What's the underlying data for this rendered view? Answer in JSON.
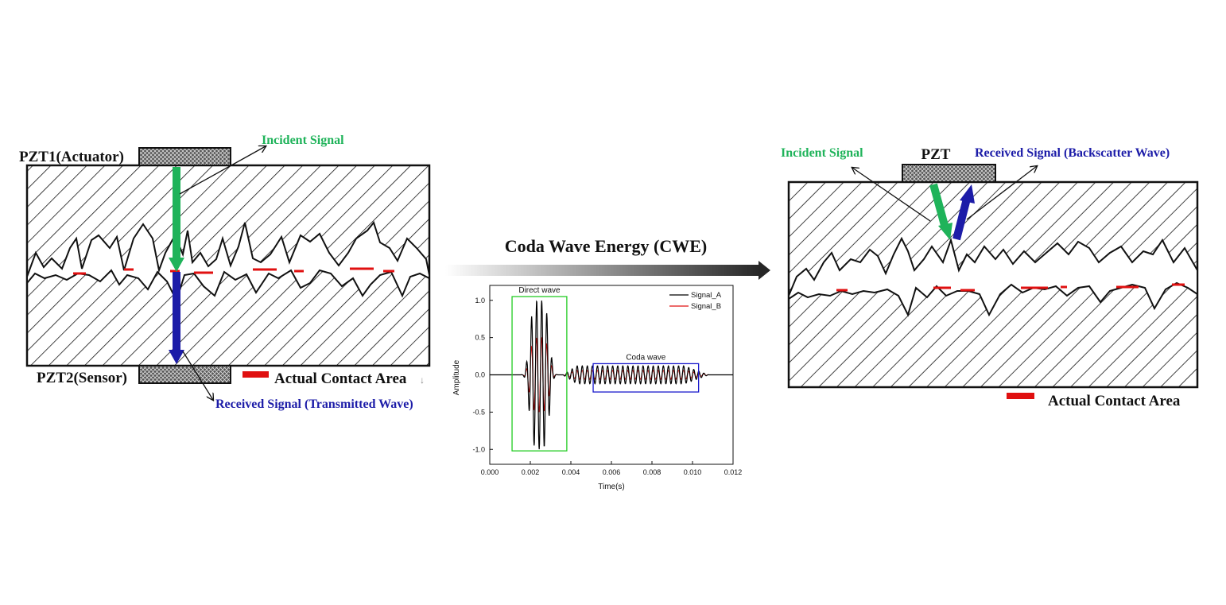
{
  "left_panel": {
    "actuator_label": "PZT1(Actuator)",
    "sensor_label": "PZT2(Sensor)",
    "incident_label": "Incident Signal",
    "received_label": "Received Signal (Transmitted Wave)",
    "legend_label": "Actual Contact Area",
    "legend_mark": "↓"
  },
  "middle": {
    "arrow_title": "Coda Wave Energy (CWE)"
  },
  "right_panel": {
    "pzt_label": "PZT",
    "incident_label": "Incident Signal",
    "received_label": "Received Signal (Backscatter Wave)",
    "legend_label": "Actual Contact Area"
  },
  "colors": {
    "incident_green": "#1fb35a",
    "received_blue": "#1c1ca8",
    "contact_red": "#e01010",
    "signal_a": "#000000",
    "signal_b": "#e01010",
    "direct_box": "#22cc22",
    "coda_box": "#1a1acc"
  },
  "chart_data": {
    "type": "line",
    "xlabel": "Time(s)",
    "ylabel": "Amplitude",
    "xlim": [
      0.0,
      0.012
    ],
    "ylim": [
      -1.2,
      1.2
    ],
    "x_ticks": [
      "0.000",
      "0.002",
      "0.004",
      "0.006",
      "0.008",
      "0.010",
      "0.012"
    ],
    "y_ticks": [
      "1.0",
      "0.5",
      "0.0",
      "-0.5",
      "-1.0"
    ],
    "legend_position": "top-right",
    "series": [
      {
        "name": "Signal_A",
        "color": "#000000",
        "frequency_hz": 4000,
        "direct_peak": 1.0,
        "coda_peak": 0.12
      },
      {
        "name": "Signal_B",
        "color": "#e01010",
        "frequency_hz": 4000,
        "direct_peak": 0.5,
        "coda_peak": 0.06
      }
    ],
    "annotations": [
      {
        "label": "Direct wave",
        "x_range": [
          0.0011,
          0.0038
        ],
        "y_range": [
          -1.02,
          1.05
        ]
      },
      {
        "label": "Coda wave",
        "x_range": [
          0.0051,
          0.0103
        ],
        "y_range": [
          -0.23,
          0.15
        ]
      }
    ]
  }
}
